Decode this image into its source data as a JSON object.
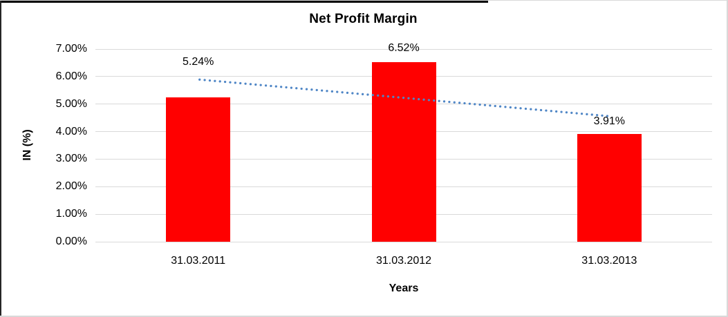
{
  "chart_data": {
    "type": "bar",
    "title": "Net Profit Margin",
    "xlabel": "Years",
    "ylabel": "IN (%)",
    "categories": [
      "31.03.2011",
      "31.03.2012",
      "31.03.2013"
    ],
    "values": [
      5.24,
      6.52,
      3.91
    ],
    "data_labels": [
      "5.24%",
      "6.52%",
      "3.91%"
    ],
    "label_y_values": [
      6.52,
      7.03,
      4.37
    ],
    "ylim": [
      0,
      7
    ],
    "ytick_step": 1,
    "ytick_labels": [
      "0.00%",
      "1.00%",
      "2.00%",
      "3.00%",
      "4.00%",
      "5.00%",
      "6.00%",
      "7.00%"
    ],
    "grid": true,
    "legend": "none",
    "bar_color": "#ff0000",
    "gridline_color": "#d9d9d9",
    "trendline": {
      "type": "linear",
      "style": "dotted",
      "color": "#4f86c6",
      "start_value": 5.89,
      "end_value": 4.56
    }
  }
}
